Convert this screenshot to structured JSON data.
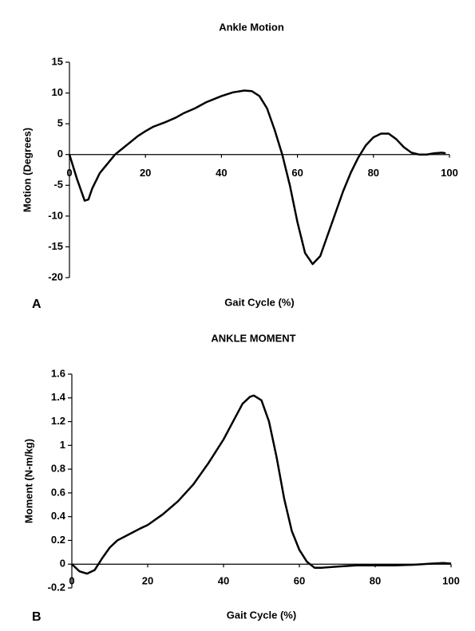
{
  "chart_data": [
    {
      "type": "line",
      "title": "Ankle Motion",
      "panel_label": "A",
      "x_label": "Gait Cycle (%)",
      "y_label": "Motion (Degrees)",
      "xlim": [
        0,
        100
      ],
      "ylim": [
        -20,
        15
      ],
      "xticks": [
        0,
        20,
        40,
        60,
        80,
        100
      ],
      "yticks": [
        15,
        10,
        5,
        0,
        -5,
        -10,
        -15,
        -20
      ],
      "series": [
        {
          "color": "#000000",
          "x": [
            0,
            2,
            4,
            5,
            6,
            8,
            10,
            12,
            14,
            16,
            18,
            20,
            22,
            25,
            28,
            30,
            33,
            36,
            40,
            43,
            46,
            48,
            50,
            52,
            54,
            56,
            58,
            60,
            62,
            64,
            66,
            68,
            70,
            72,
            74,
            76,
            78,
            80,
            82,
            84,
            86,
            88,
            90,
            92,
            94,
            96,
            98,
            99
          ],
          "values": [
            0,
            -4,
            -7.5,
            -7.3,
            -5.5,
            -3,
            -1.5,
            0,
            1,
            2,
            3,
            3.8,
            4.5,
            5.2,
            6,
            6.7,
            7.5,
            8.5,
            9.5,
            10.1,
            10.4,
            10.3,
            9.5,
            7.5,
            4,
            0,
            -5,
            -11,
            -16,
            -17.8,
            -16.5,
            -13,
            -9.5,
            -6,
            -3,
            -0.5,
            1.5,
            2.8,
            3.4,
            3.4,
            2.5,
            1.2,
            0.3,
            0,
            0,
            0.2,
            0.3,
            0.2
          ]
        }
      ]
    },
    {
      "type": "line",
      "title": "ANKLE MOMENT",
      "panel_label": "B",
      "x_label": "Gait Cycle (%)",
      "y_label": "Moment (N-m/kg)",
      "xlim": [
        0,
        100
      ],
      "ylim": [
        -0.2,
        1.6
      ],
      "xticks": [
        0,
        20,
        40,
        60,
        80,
        100
      ],
      "yticks": [
        1.6,
        1.4,
        1.2,
        1,
        0.8,
        0.6,
        0.4,
        0.2,
        0,
        -0.2
      ],
      "series": [
        {
          "color": "#000000",
          "x": [
            0,
            2,
            4,
            6,
            8,
            10,
            12,
            15,
            18,
            20,
            24,
            28,
            32,
            36,
            40,
            43,
            45,
            47,
            48,
            50,
            52,
            54,
            56,
            58,
            60,
            62,
            64,
            66,
            70,
            75,
            80,
            85,
            90,
            95,
            98,
            100
          ],
          "values": [
            0,
            -0.06,
            -0.08,
            -0.05,
            0.05,
            0.14,
            0.2,
            0.25,
            0.3,
            0.33,
            0.42,
            0.53,
            0.67,
            0.85,
            1.05,
            1.23,
            1.35,
            1.41,
            1.42,
            1.38,
            1.2,
            0.9,
            0.55,
            0.28,
            0.12,
            0.02,
            -0.03,
            -0.03,
            -0.02,
            -0.01,
            -0.01,
            -0.01,
            -0.005,
            0.005,
            0.01,
            0.005
          ]
        }
      ]
    }
  ]
}
